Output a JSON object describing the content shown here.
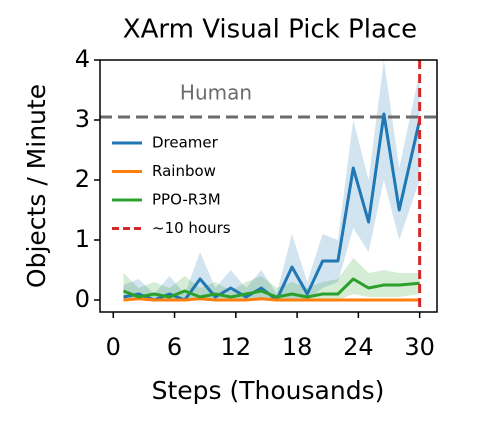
{
  "chart_data": {
    "type": "line",
    "title": "XArm Visual Pick Place",
    "x_label": "Steps (Thousands)",
    "y_label": "Objects / Minute",
    "xlim": [
      -1.3,
      31.7
    ],
    "ylim": [
      -0.2,
      4
    ],
    "xticks": [
      0,
      6,
      12,
      18,
      24,
      30
    ],
    "yticks": [
      0,
      1,
      2,
      3,
      4
    ],
    "x": [
      1,
      2.5,
      4,
      5.5,
      7,
      8.5,
      10,
      11.5,
      13,
      14.5,
      16,
      17.5,
      19,
      20.5,
      22,
      23.5,
      25,
      26.5,
      28,
      30
    ],
    "series": [
      {
        "name": "Dreamer",
        "color": "#1f77b4",
        "values": [
          0.05,
          0.1,
          0.0,
          0.1,
          0.0,
          0.35,
          0.05,
          0.2,
          0.05,
          0.2,
          0.0,
          0.55,
          0.1,
          0.65,
          0.65,
          2.2,
          1.3,
          3.1,
          1.5,
          3.0
        ],
        "lower": [
          0.0,
          0.0,
          0.0,
          0.0,
          0.0,
          0.0,
          0.0,
          0.0,
          0.0,
          0.0,
          0.0,
          0.0,
          0.0,
          0.2,
          0.3,
          1.2,
          0.8,
          2.0,
          1.0,
          2.0
        ],
        "upper": [
          0.25,
          0.35,
          0.1,
          0.4,
          0.1,
          0.8,
          0.2,
          0.5,
          0.2,
          0.5,
          0.1,
          1.1,
          0.3,
          1.1,
          1.0,
          3.0,
          2.0,
          4.0,
          2.2,
          3.8
        ]
      },
      {
        "name": "Rainbow",
        "color": "#ff7f0e",
        "values": [
          0.0,
          0.02,
          0.0,
          0.0,
          0.0,
          0.02,
          0.0,
          0.0,
          0.0,
          0.02,
          0.0,
          0.0,
          0.0,
          0.0,
          0.0,
          0.0,
          0.0,
          0.0,
          0.0,
          0.0
        ]
      },
      {
        "name": "PPO-R3M",
        "color": "#2ca02c",
        "values": [
          0.15,
          0.05,
          0.1,
          0.05,
          0.15,
          0.05,
          0.1,
          0.05,
          0.1,
          0.15,
          0.05,
          0.1,
          0.05,
          0.1,
          0.1,
          0.35,
          0.2,
          0.25,
          0.25,
          0.28
        ],
        "lower": [
          0.0,
          0.0,
          0.0,
          0.0,
          0.0,
          0.0,
          0.0,
          0.0,
          0.0,
          0.0,
          0.0,
          0.0,
          0.0,
          0.0,
          0.0,
          0.1,
          0.05,
          0.05,
          0.05,
          0.1
        ],
        "upper": [
          0.45,
          0.2,
          0.3,
          0.2,
          0.4,
          0.2,
          0.3,
          0.15,
          0.3,
          0.4,
          0.2,
          0.3,
          0.2,
          0.3,
          0.35,
          0.7,
          0.45,
          0.5,
          0.45,
          0.45
        ]
      }
    ],
    "vline": {
      "name": "~10 hours",
      "color": "#d62728",
      "x": 30
    },
    "hline": {
      "label": "Human",
      "color": "#6b6b6b",
      "y": 3.05
    }
  }
}
